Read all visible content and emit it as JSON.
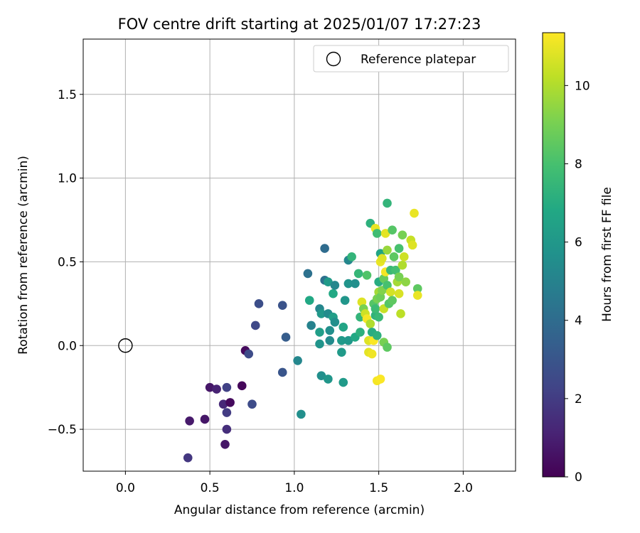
{
  "chart_data": {
    "type": "scatter",
    "title": "FOV centre drift starting at 2025/01/07 17:27:23",
    "xlabel": "Angular distance from reference (arcmin)",
    "ylabel": "Rotation from reference (arcmin)",
    "xlim": [
      -0.25,
      2.31
    ],
    "ylim": [
      -0.75,
      1.83
    ],
    "xticks": [
      0.0,
      0.5,
      1.0,
      1.5,
      2.0
    ],
    "xtick_labels": [
      "0.0",
      "0.5",
      "1.0",
      "1.5",
      "2.0"
    ],
    "yticks": [
      -0.5,
      0.0,
      0.5,
      1.0,
      1.5
    ],
    "ytick_labels": [
      "−0.5",
      "0.0",
      "0.5",
      "1.0",
      "1.5"
    ],
    "grid": true,
    "legend": {
      "position": "top-right",
      "entries": [
        "Reference platepar"
      ]
    },
    "reference_point": {
      "x": 0.0,
      "y": 0.0,
      "label": "Reference platepar"
    },
    "colorbar": {
      "label": "Hours from first FF file",
      "range": [
        0,
        11.35
      ],
      "ticks": [
        0,
        2,
        4,
        6,
        8,
        10
      ],
      "tick_labels": [
        "0",
        "2",
        "4",
        "6",
        "8",
        "10"
      ],
      "colormap": "viridis"
    },
    "points": [
      {
        "x": 0.37,
        "y": -0.67,
        "h": 1.8
      },
      {
        "x": 0.38,
        "y": -0.45,
        "h": 0.8
      },
      {
        "x": 0.47,
        "y": -0.44,
        "h": 0.7
      },
      {
        "x": 0.5,
        "y": -0.25,
        "h": 0.7
      },
      {
        "x": 0.54,
        "y": -0.26,
        "h": 1.1
      },
      {
        "x": 0.59,
        "y": -0.59,
        "h": 0.7
      },
      {
        "x": 0.58,
        "y": -0.35,
        "h": 1.3
      },
      {
        "x": 0.6,
        "y": -0.5,
        "h": 1.5
      },
      {
        "x": 0.6,
        "y": -0.4,
        "h": 2.0
      },
      {
        "x": 0.62,
        "y": -0.34,
        "h": 0.3
      },
      {
        "x": 0.6,
        "y": -0.25,
        "h": 2.2
      },
      {
        "x": 0.69,
        "y": -0.24,
        "h": 0.2
      },
      {
        "x": 0.71,
        "y": -0.03,
        "h": 0.3
      },
      {
        "x": 0.73,
        "y": -0.05,
        "h": 2.6
      },
      {
        "x": 0.75,
        "y": -0.35,
        "h": 2.6
      },
      {
        "x": 0.77,
        "y": 0.12,
        "h": 2.5
      },
      {
        "x": 0.79,
        "y": 0.25,
        "h": 2.7
      },
      {
        "x": 0.93,
        "y": -0.16,
        "h": 3.0
      },
      {
        "x": 0.93,
        "y": 0.24,
        "h": 2.9
      },
      {
        "x": 0.95,
        "y": 0.05,
        "h": 3.3
      },
      {
        "x": 1.02,
        "y": -0.09,
        "h": 5.2
      },
      {
        "x": 1.04,
        "y": -0.41,
        "h": 5.6
      },
      {
        "x": 1.08,
        "y": 0.43,
        "h": 4.2
      },
      {
        "x": 1.09,
        "y": 0.27,
        "h": 6.8
      },
      {
        "x": 1.1,
        "y": 0.12,
        "h": 5.0
      },
      {
        "x": 1.15,
        "y": 0.22,
        "h": 5.2
      },
      {
        "x": 1.16,
        "y": 0.19,
        "h": 6.0
      },
      {
        "x": 1.15,
        "y": 0.08,
        "h": 6.3
      },
      {
        "x": 1.15,
        "y": 0.01,
        "h": 5.8
      },
      {
        "x": 1.16,
        "y": -0.18,
        "h": 5.6
      },
      {
        "x": 1.18,
        "y": 0.58,
        "h": 4.0
      },
      {
        "x": 1.18,
        "y": 0.39,
        "h": 4.2
      },
      {
        "x": 1.2,
        "y": 0.38,
        "h": 6.1
      },
      {
        "x": 1.2,
        "y": 0.19,
        "h": 5.4
      },
      {
        "x": 1.21,
        "y": 0.09,
        "h": 5.6
      },
      {
        "x": 1.21,
        "y": 0.03,
        "h": 5.4
      },
      {
        "x": 1.2,
        "y": -0.2,
        "h": 5.9
      },
      {
        "x": 1.23,
        "y": 0.31,
        "h": 6.8
      },
      {
        "x": 1.23,
        "y": 0.17,
        "h": 6.3
      },
      {
        "x": 1.24,
        "y": 0.36,
        "h": 5.2
      },
      {
        "x": 1.24,
        "y": 0.14,
        "h": 5.6
      },
      {
        "x": 1.28,
        "y": 0.03,
        "h": 6.1
      },
      {
        "x": 1.28,
        "y": -0.04,
        "h": 6.1
      },
      {
        "x": 1.29,
        "y": 0.11,
        "h": 6.6
      },
      {
        "x": 1.3,
        "y": 0.27,
        "h": 5.9
      },
      {
        "x": 1.29,
        "y": -0.22,
        "h": 6.1
      },
      {
        "x": 1.32,
        "y": 0.51,
        "h": 5.2
      },
      {
        "x": 1.32,
        "y": 0.37,
        "h": 5.8
      },
      {
        "x": 1.32,
        "y": 0.03,
        "h": 6.0
      },
      {
        "x": 1.34,
        "y": 0.53,
        "h": 7.4
      },
      {
        "x": 1.36,
        "y": 0.37,
        "h": 5.6
      },
      {
        "x": 1.36,
        "y": 0.05,
        "h": 6.8
      },
      {
        "x": 1.38,
        "y": 0.43,
        "h": 7.5
      },
      {
        "x": 1.39,
        "y": 0.17,
        "h": 7.4
      },
      {
        "x": 1.39,
        "y": 0.08,
        "h": 7.2
      },
      {
        "x": 1.4,
        "y": 0.26,
        "h": 10.8
      },
      {
        "x": 1.41,
        "y": 0.22,
        "h": 9.0
      },
      {
        "x": 1.42,
        "y": 0.19,
        "h": 10.5
      },
      {
        "x": 1.43,
        "y": 0.16,
        "h": 11.2
      },
      {
        "x": 1.43,
        "y": 0.42,
        "h": 8.2
      },
      {
        "x": 1.44,
        "y": 0.03,
        "h": 10.8
      },
      {
        "x": 1.44,
        "y": -0.04,
        "h": 10.9
      },
      {
        "x": 1.45,
        "y": 0.13,
        "h": 10.0
      },
      {
        "x": 1.45,
        "y": 0.73,
        "h": 7.2
      },
      {
        "x": 1.46,
        "y": -0.05,
        "h": 11.1
      },
      {
        "x": 1.46,
        "y": 0.08,
        "h": 7.0
      },
      {
        "x": 1.47,
        "y": 0.03,
        "h": 11.3
      },
      {
        "x": 1.47,
        "y": 0.25,
        "h": 8.3
      },
      {
        "x": 1.48,
        "y": 0.7,
        "h": 11.0
      },
      {
        "x": 1.48,
        "y": 0.18,
        "h": 7.3
      },
      {
        "x": 1.48,
        "y": 0.22,
        "h": 7.7
      },
      {
        "x": 1.49,
        "y": 0.67,
        "h": 7.8
      },
      {
        "x": 1.49,
        "y": 0.28,
        "h": 9.0
      },
      {
        "x": 1.49,
        "y": 0.06,
        "h": 7.2
      },
      {
        "x": 1.49,
        "y": -0.21,
        "h": 11.2
      },
      {
        "x": 1.5,
        "y": 0.38,
        "h": 7.0
      },
      {
        "x": 1.5,
        "y": 0.32,
        "h": 9.8
      },
      {
        "x": 1.5,
        "y": 0.17,
        "h": 7.6
      },
      {
        "x": 1.51,
        "y": 0.55,
        "h": 6.6
      },
      {
        "x": 1.51,
        "y": 0.5,
        "h": 11.0
      },
      {
        "x": 1.51,
        "y": 0.29,
        "h": 8.8
      },
      {
        "x": 1.51,
        "y": -0.2,
        "h": 11.3
      },
      {
        "x": 1.52,
        "y": 0.52,
        "h": 10.8
      },
      {
        "x": 1.52,
        "y": 0.33,
        "h": 9.2
      },
      {
        "x": 1.53,
        "y": 0.4,
        "h": 8.7
      },
      {
        "x": 1.53,
        "y": 0.22,
        "h": 10.4
      },
      {
        "x": 1.53,
        "y": 0.02,
        "h": 9.0
      },
      {
        "x": 1.54,
        "y": 0.67,
        "h": 10.9
      },
      {
        "x": 1.54,
        "y": 0.44,
        "h": 11.2
      },
      {
        "x": 1.55,
        "y": 0.36,
        "h": 8.0
      },
      {
        "x": 1.55,
        "y": 0.85,
        "h": 7.4
      },
      {
        "x": 1.55,
        "y": -0.01,
        "h": 8.5
      },
      {
        "x": 1.55,
        "y": 0.57,
        "h": 9.6
      },
      {
        "x": 1.56,
        "y": 0.25,
        "h": 8.3
      },
      {
        "x": 1.57,
        "y": 0.45,
        "h": 7.6
      },
      {
        "x": 1.57,
        "y": 0.32,
        "h": 10.6
      },
      {
        "x": 1.58,
        "y": 0.27,
        "h": 8.5
      },
      {
        "x": 1.58,
        "y": 0.69,
        "h": 8.3
      },
      {
        "x": 1.59,
        "y": 0.53,
        "h": 8.5
      },
      {
        "x": 1.6,
        "y": 0.45,
        "h": 7.9
      },
      {
        "x": 1.61,
        "y": 0.38,
        "h": 9.8
      },
      {
        "x": 1.62,
        "y": 0.41,
        "h": 9.0
      },
      {
        "x": 1.62,
        "y": 0.58,
        "h": 8.0
      },
      {
        "x": 1.62,
        "y": 0.31,
        "h": 10.7
      },
      {
        "x": 1.63,
        "y": 0.19,
        "h": 10.2
      },
      {
        "x": 1.64,
        "y": 0.66,
        "h": 9.0
      },
      {
        "x": 1.64,
        "y": 0.48,
        "h": 10.0
      },
      {
        "x": 1.65,
        "y": 0.53,
        "h": 10.5
      },
      {
        "x": 1.66,
        "y": 0.38,
        "h": 9.4
      },
      {
        "x": 1.69,
        "y": 0.63,
        "h": 10.4
      },
      {
        "x": 1.7,
        "y": 0.6,
        "h": 10.8
      },
      {
        "x": 1.71,
        "y": 0.79,
        "h": 11.0
      },
      {
        "x": 1.73,
        "y": 0.34,
        "h": 8.5
      },
      {
        "x": 1.73,
        "y": 0.3,
        "h": 11.0
      }
    ]
  }
}
